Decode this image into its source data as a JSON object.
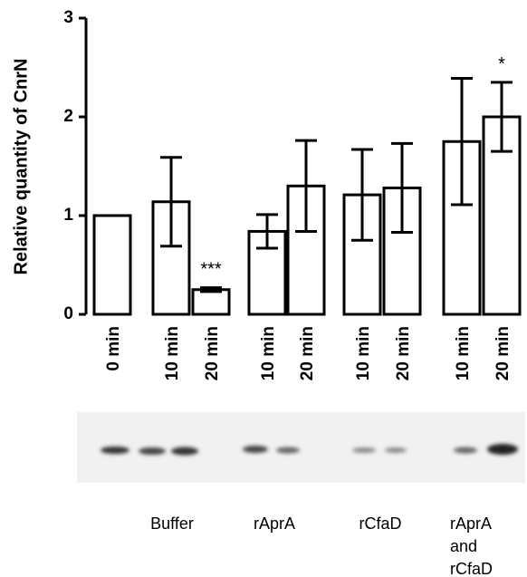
{
  "chart_data": {
    "type": "bar",
    "y_label": "Relative quantity of CnrN",
    "categories": [
      "0 min",
      "10 min",
      "20 min",
      "10 min",
      "20 min",
      "10 min",
      "20 min",
      "10 min",
      "20 min"
    ],
    "values": [
      1.0,
      1.14,
      0.25,
      0.84,
      1.3,
      1.21,
      1.28,
      1.75,
      2.0
    ],
    "errors": [
      null,
      0.45,
      0.02,
      0.17,
      0.46,
      0.46,
      0.45,
      0.64,
      0.35
    ],
    "annotations": [
      {
        "index": 2,
        "text": "***"
      },
      {
        "index": 8,
        "text": "*"
      }
    ],
    "color": "#ffffff",
    "ylim": [
      0,
      3
    ],
    "yticks": [
      0,
      1,
      2,
      3
    ],
    "group_labels": [
      [
        "Buffer"
      ],
      [
        "rAprA"
      ],
      [
        "rCfaD"
      ],
      [
        "rAprA",
        "and",
        "rCfaD"
      ]
    ]
  }
}
